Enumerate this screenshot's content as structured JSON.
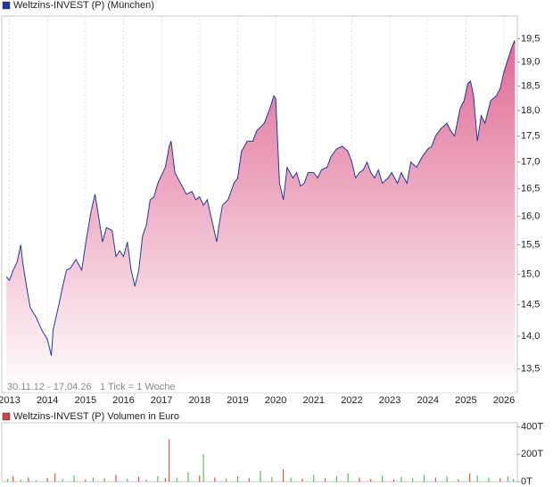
{
  "chart_data": [
    {
      "type": "area",
      "log_y": true,
      "grid": "x",
      "series": [
        {
          "name": "Weltzins-INVEST (P) (München)",
          "color": "#1f3c99",
          "fill_color": "#e06b95",
          "x": [
            2012.92,
            2013.0,
            2013.1,
            2013.2,
            2013.3,
            2013.35,
            2013.45,
            2013.55,
            2013.7,
            2013.85,
            2014.0,
            2014.1,
            2014.15,
            2014.3,
            2014.4,
            2014.5,
            2014.6,
            2014.75,
            2014.9,
            2015.0,
            2015.15,
            2015.25,
            2015.3,
            2015.45,
            2015.55,
            2015.7,
            2015.8,
            2015.9,
            2016.0,
            2016.1,
            2016.2,
            2016.3,
            2016.4,
            2016.5,
            2016.6,
            2016.7,
            2016.8,
            2016.9,
            2017.0,
            2017.1,
            2017.2,
            2017.25,
            2017.35,
            2017.5,
            2017.65,
            2017.8,
            2017.9,
            2018.0,
            2018.1,
            2018.2,
            2018.35,
            2018.45,
            2018.5,
            2018.6,
            2018.75,
            2018.9,
            2019.0,
            2019.1,
            2019.25,
            2019.4,
            2019.5,
            2019.7,
            2019.85,
            2019.95,
            2020.0,
            2020.1,
            2020.2,
            2020.3,
            2020.45,
            2020.55,
            2020.65,
            2020.75,
            2020.85,
            2021.0,
            2021.1,
            2021.2,
            2021.35,
            2021.45,
            2021.6,
            2021.75,
            2021.9,
            2022.0,
            2022.1,
            2022.2,
            2022.3,
            2022.4,
            2022.5,
            2022.6,
            2022.7,
            2022.8,
            2022.95,
            2023.05,
            2023.2,
            2023.3,
            2023.45,
            2023.55,
            2023.7,
            2023.85,
            2024.0,
            2024.1,
            2024.2,
            2024.35,
            2024.5,
            2024.6,
            2024.7,
            2024.85,
            2024.95,
            2025.05,
            2025.12,
            2025.2,
            2025.3,
            2025.4,
            2025.5,
            2025.65,
            2025.8,
            2025.9,
            2026.0,
            2026.1,
            2026.2,
            2026.27,
            2026.29
          ],
          "values": [
            14.96,
            14.9,
            15.07,
            15.2,
            15.5,
            15.2,
            14.8,
            14.45,
            14.3,
            14.1,
            13.95,
            13.7,
            14.1,
            14.5,
            14.8,
            15.07,
            15.1,
            15.25,
            15.07,
            15.5,
            16.1,
            16.4,
            16.2,
            15.55,
            15.8,
            15.75,
            15.3,
            15.4,
            15.3,
            15.55,
            15.07,
            14.8,
            15.07,
            15.65,
            15.85,
            16.3,
            16.35,
            16.6,
            16.75,
            16.9,
            17.3,
            17.4,
            16.8,
            16.6,
            16.4,
            16.45,
            16.3,
            16.35,
            16.2,
            16.3,
            15.85,
            15.55,
            15.8,
            16.2,
            16.3,
            16.6,
            16.7,
            17.2,
            17.4,
            17.4,
            17.6,
            17.75,
            18.05,
            18.3,
            18.25,
            16.6,
            16.3,
            16.9,
            16.7,
            16.8,
            16.55,
            16.6,
            16.8,
            16.8,
            16.7,
            16.85,
            16.9,
            17.1,
            17.25,
            17.3,
            17.2,
            17.0,
            16.7,
            16.8,
            16.85,
            17.0,
            16.8,
            16.7,
            16.85,
            16.6,
            16.7,
            16.8,
            16.6,
            16.8,
            16.6,
            17.0,
            16.9,
            17.1,
            17.25,
            17.3,
            17.5,
            17.65,
            17.75,
            17.6,
            17.5,
            18.05,
            18.2,
            18.55,
            18.6,
            18.3,
            17.4,
            17.9,
            17.75,
            18.2,
            18.3,
            18.45,
            18.8,
            19.05,
            19.3,
            19.45,
            19.4
          ]
        }
      ],
      "xlim": [
        2012.8,
        2026.35
      ],
      "xticks": [
        2013,
        2014,
        2015,
        2016,
        2017,
        2018,
        2019,
        2020,
        2021,
        2022,
        2023,
        2024,
        2025,
        2026
      ],
      "ylim": [
        13.15,
        20.0
      ],
      "yticks": [
        {
          "value": 13.5,
          "label": "13,5"
        },
        {
          "value": 14.0,
          "label": "14,0"
        },
        {
          "value": 14.5,
          "label": "14,5"
        },
        {
          "value": 15.0,
          "label": "15,0"
        },
        {
          "value": 15.5,
          "label": "15,5"
        },
        {
          "value": 16.0,
          "label": "16,0"
        },
        {
          "value": 16.5,
          "label": "16,5"
        },
        {
          "value": 17.0,
          "label": "17,0"
        },
        {
          "value": 17.5,
          "label": "17,5"
        },
        {
          "value": 18.0,
          "label": "18,0"
        },
        {
          "value": 18.5,
          "label": "18,5"
        },
        {
          "value": 19.0,
          "label": "19,0"
        },
        {
          "value": 19.5,
          "label": "19,5"
        }
      ],
      "period": "30.11.12 - 17.04.26",
      "note": "1 Tick = 1 Woche"
    },
    {
      "type": "bar",
      "series": [
        {
          "name": "Weltzins-INVEST (P) Volumen in Euro",
          "color": "#c8474d",
          "x": [
            2012.95,
            2013.1,
            2013.3,
            2013.5,
            2013.7,
            2014.0,
            2014.2,
            2014.4,
            2014.7,
            2015.0,
            2015.2,
            2015.5,
            2015.8,
            2016.1,
            2016.4,
            2016.6,
            2016.9,
            2017.1,
            2017.2,
            2017.4,
            2017.7,
            2018.0,
            2018.1,
            2018.4,
            2018.7,
            2019.0,
            2019.3,
            2019.6,
            2019.9,
            2020.2,
            2020.4,
            2020.7,
            2021.0,
            2021.3,
            2021.6,
            2021.9,
            2022.2,
            2022.5,
            2022.8,
            2023.1,
            2023.3,
            2023.6,
            2023.9,
            2024.2,
            2024.5,
            2024.8,
            2025.1,
            2025.3,
            2025.6,
            2025.9,
            2026.1,
            2026.25
          ],
          "values": [
            20000,
            40000,
            15000,
            30000,
            10000,
            25000,
            60000,
            20000,
            45000,
            15000,
            30000,
            25000,
            50000,
            20000,
            35000,
            15000,
            40000,
            25000,
            310000,
            30000,
            70000,
            45000,
            200000,
            30000,
            20000,
            40000,
            25000,
            80000,
            35000,
            90000,
            30000,
            20000,
            50000,
            25000,
            40000,
            60000,
            30000,
            20000,
            45000,
            15000,
            35000,
            25000,
            50000,
            30000,
            40000,
            20000,
            60000,
            45000,
            30000,
            25000,
            40000,
            20000
          ],
          "colors": [
            "#3cb043",
            "#d9302c",
            "#3cb043",
            "#d9302c",
            "#3cb043",
            "#d9302c",
            "#d9302c",
            "#3cb043",
            "#3cb043",
            "#d9302c",
            "#3cb043",
            "#3cb043",
            "#d9302c",
            "#3cb043",
            "#d9302c",
            "#3cb043",
            "#3cb043",
            "#d9302c",
            "#d9302c",
            "#3cb043",
            "#3cb043",
            "#d9302c",
            "#3cb043",
            "#d9302c",
            "#3cb043",
            "#3cb043",
            "#d9302c",
            "#3cb043",
            "#3cb043",
            "#d9302c",
            "#3cb043",
            "#d9302c",
            "#3cb043",
            "#d9302c",
            "#3cb043",
            "#3cb043",
            "#d9302c",
            "#d9302c",
            "#3cb043",
            "#d9302c",
            "#3cb043",
            "#3cb043",
            "#3cb043",
            "#d9302c",
            "#3cb043",
            "#3cb043",
            "#d9302c",
            "#3cb043",
            "#3cb043",
            "#d9302c",
            "#3cb043",
            "#3cb043"
          ]
        }
      ],
      "xlim": [
        2012.8,
        2026.35
      ],
      "ylim": [
        0,
        430000
      ],
      "yticks": [
        {
          "value": 0,
          "label": "0T"
        },
        {
          "value": 200000,
          "label": "200T"
        },
        {
          "value": 400000,
          "label": "400T"
        }
      ]
    }
  ]
}
